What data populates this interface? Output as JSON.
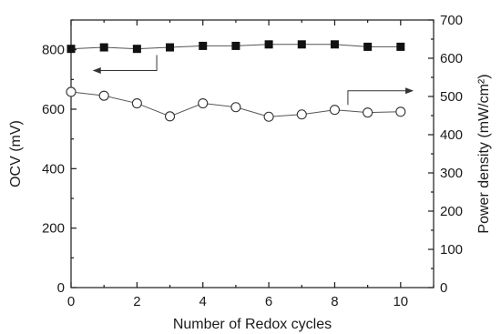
{
  "chart_data": {
    "type": "scatter",
    "title": "",
    "xlabel": "Number of Redox cycles",
    "ylabel": "OCV (mV)",
    "y2label": "Power density (mW/cm²)",
    "xlim": [
      0,
      11
    ],
    "ylim": [
      0,
      900
    ],
    "y2lim": [
      0,
      700
    ],
    "xticks": [
      0,
      2,
      4,
      6,
      8,
      10
    ],
    "yticks": [
      0,
      200,
      400,
      600,
      800
    ],
    "y2ticks": [
      0,
      100,
      200,
      300,
      400,
      500,
      600,
      700
    ],
    "grid": false,
    "legend": "none",
    "series": [
      {
        "axis": "left",
        "marker": "filled-square",
        "color": "#111111",
        "x": [
          0,
          1,
          2,
          3,
          4,
          5,
          6,
          7,
          8,
          9,
          10
        ],
        "y": [
          803,
          808,
          803,
          808,
          813,
          813,
          818,
          818,
          818,
          810,
          810
        ]
      },
      {
        "axis": "right",
        "marker": "open-circle",
        "color": "#333333",
        "x": [
          0,
          1,
          2,
          3,
          4,
          5,
          6,
          7,
          8,
          9,
          10
        ],
        "y": [
          512,
          502,
          482,
          448,
          482,
          472,
          447,
          453,
          465,
          458,
          460
        ]
      }
    ],
    "annotations": [
      {
        "type": "arrow",
        "points_to": "left axis",
        "series": 0
      },
      {
        "type": "arrow",
        "points_to": "right axis",
        "series": 1
      }
    ]
  }
}
